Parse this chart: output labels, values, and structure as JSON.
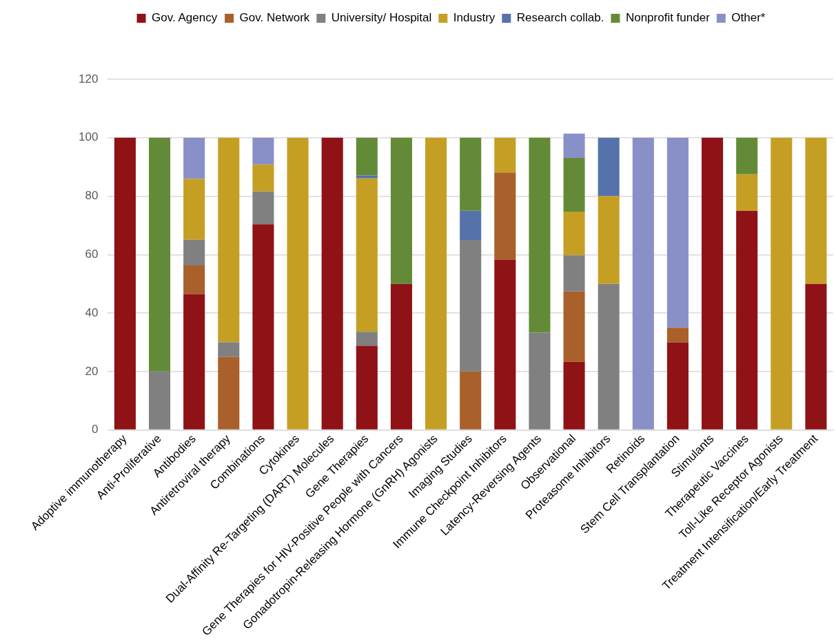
{
  "chart_data": {
    "type": "bar",
    "stacked": true,
    "legend": "top",
    "grid": "y",
    "categories": [
      "Adoptive immunotherapy",
      "Anti-Proliferative",
      "Antibodies",
      "Antiretroviral therapy",
      "Combinations",
      "Cytokines",
      "Dual-Affinity Re-Targeting (DART) Molecules",
      "Gene Therapies",
      "Gene Therapies for HIV-Positive People with Cancers",
      "Gonadotropin-Releasing Hormone (GnRH) Agonists",
      "Imaging Studies",
      "Immune Checkpoint Inhibitors",
      "Latency-Reversing Agents",
      "Observational",
      "Proteasome Inhibitors",
      "Retinoids",
      "Stem Cell Transplantation",
      "Stimulants",
      "Therapeutic Vaccines",
      "Toll-Like Receptor Agonists",
      "Treatment Intensification/Early Treatment"
    ],
    "ylim": [
      0,
      120
    ],
    "yticks": [
      0,
      20,
      40,
      60,
      80,
      100,
      120
    ],
    "series": [
      {
        "name": "Gov. Agency",
        "color": "#8f1216",
        "values": [
          100,
          0,
          46.5,
          0,
          70.4,
          0,
          100,
          28.8,
          50,
          0,
          0,
          58.3,
          0,
          23.3,
          0,
          0,
          30,
          100,
          75,
          0,
          50
        ]
      },
      {
        "name": "Gov. Network",
        "color": "#a9602a",
        "values": [
          0,
          0,
          9.8,
          25,
          0,
          0,
          0,
          0,
          0,
          0,
          20,
          29.8,
          0,
          24.1,
          0,
          0,
          5,
          0,
          0,
          0,
          0
        ]
      },
      {
        "name": "University/ Hospital",
        "color": "#808080",
        "values": [
          0,
          20,
          8.8,
          5,
          11.2,
          0,
          0,
          4.8,
          0,
          0,
          45,
          0,
          33.3,
          12.4,
          50,
          0,
          0,
          0,
          0,
          0,
          0
        ]
      },
      {
        "name": "Industry",
        "color": "#c59f24",
        "values": [
          0,
          0,
          20.8,
          70,
          9.2,
          100,
          0,
          52.5,
          0,
          100,
          0,
          11.9,
          0,
          14.9,
          30,
          0,
          0,
          0,
          12.5,
          100,
          50
        ]
      },
      {
        "name": "Research collab.",
        "color": "#5572ab",
        "values": [
          0,
          0,
          0,
          0,
          0,
          0,
          0,
          1,
          0,
          0,
          10,
          0,
          0,
          0,
          20,
          0,
          0,
          0,
          0,
          0,
          0
        ]
      },
      {
        "name": "Nonprofit funder",
        "color": "#638b37",
        "values": [
          0,
          80,
          0,
          0,
          0,
          0,
          0,
          12.9,
          50,
          0,
          25,
          0,
          66.7,
          18.4,
          0,
          0,
          0,
          0,
          12.5,
          0,
          0
        ]
      },
      {
        "name": "Other*",
        "color": "#8990c8",
        "values": [
          0,
          0,
          14.1,
          0,
          9.2,
          0,
          0,
          0,
          0,
          0,
          0,
          0,
          0,
          8.3,
          0,
          100,
          65,
          0,
          0,
          0,
          0
        ]
      }
    ]
  }
}
